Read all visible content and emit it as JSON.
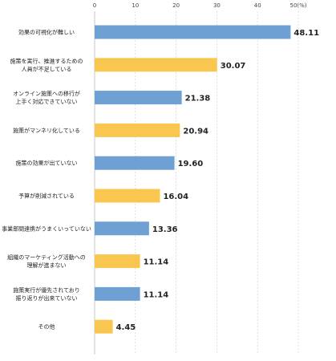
{
  "chart_data": {
    "type": "bar",
    "orientation": "horizontal",
    "categories": [
      [
        "効果の可視化が難しい"
      ],
      [
        "施策を実行、推進するための",
        "人員が不足している"
      ],
      [
        "オンライン施策への移行が",
        "上手く対応できていない"
      ],
      [
        "施策がマンネリ化している"
      ],
      [
        "施策の効果が出ていない"
      ],
      [
        "予算が削減されている"
      ],
      [
        "事業部間連携がうまくいっていない"
      ],
      [
        "組織のマーケティング活動への",
        "理解が進まない"
      ],
      [
        "施策実行が優先されており",
        "振り返りが出来ていない"
      ],
      [
        "その他"
      ]
    ],
    "values": [
      48.11,
      30.07,
      21.38,
      20.94,
      19.6,
      16.04,
      13.36,
      11.14,
      11.14,
      4.45
    ],
    "value_labels": [
      "48.11",
      "30.07",
      "21.38",
      "20.94",
      "19.60",
      "16.04",
      "13.36",
      "11.14",
      "11.14",
      "4.45"
    ],
    "bar_colors": [
      "#6fa0d4",
      "#f9c74f",
      "#6fa0d4",
      "#f9c74f",
      "#6fa0d4",
      "#f9c74f",
      "#6fa0d4",
      "#f9c74f",
      "#6fa0d4",
      "#f9c74f"
    ],
    "xlim": [
      0,
      50
    ],
    "x_ticks": [
      0,
      10,
      20,
      30,
      40,
      50
    ],
    "x_tick_labels": [
      "0",
      "10",
      "20",
      "30",
      "40",
      "50(%)"
    ],
    "grid": true,
    "tick_position": "top"
  }
}
